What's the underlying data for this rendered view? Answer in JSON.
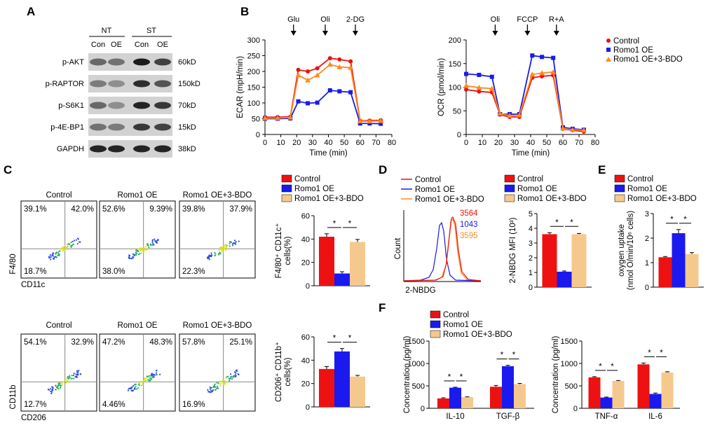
{
  "colors": {
    "red": "#ee1111",
    "blue": "#1a1aee",
    "orange": "#ff8a1a",
    "tan": "#f5c98d",
    "dark": "#000000"
  },
  "panels": {
    "A": "A",
    "B": "B",
    "C": "C",
    "D": "D",
    "E": "E",
    "F": "F"
  },
  "western_blot": {
    "groups": [
      "NT",
      "ST"
    ],
    "lanes": [
      "Con",
      "OE",
      "Con",
      "OE"
    ],
    "rows": [
      {
        "label": "p-AKT",
        "kd": "60kD"
      },
      {
        "label": "p-RAPTOR",
        "kd": "150kD"
      },
      {
        "label": "p-S6K1",
        "kd": "70kD"
      },
      {
        "label": "p-4E-BP1",
        "kd": "15kD"
      },
      {
        "label": "GAPDH",
        "kd": "38kD"
      }
    ]
  },
  "legend3_line": [
    "Control",
    "Romo1 OE",
    "Romo1 OE+3-BDO"
  ],
  "legend3_bar": [
    "Control",
    "Romo1 OE",
    "Romo1 OE+3-BDO"
  ],
  "star": "*",
  "flow": {
    "columns": [
      "Control",
      "Romo1 OE",
      "Romo1 OE+3-BDO"
    ],
    "top": {
      "ylabel": "F4/80",
      "xlabel": "CD11c",
      "quadrants": [
        {
          "ul": "39.1%",
          "ur": "42.0%",
          "ll": "18.7%"
        },
        {
          "ul": "52.6%",
          "ur": "9.39%",
          "ll": "38.0%"
        },
        {
          "ul": "39.8%",
          "ur": "37.9%",
          "ll": "22.3%"
        }
      ]
    },
    "bottom": {
      "ylabel": "CD11b",
      "xlabel": "CD206",
      "quadrants": [
        {
          "ul": "54.1%",
          "ur": "32.9%",
          "ll": "12.7%"
        },
        {
          "ul": "47.2%",
          "ur": "48.3%",
          "ll": "4.46%"
        },
        {
          "ul": "57.8%",
          "ur": "25.1%",
          "ll": "16.9%"
        }
      ]
    }
  },
  "histogram": {
    "legend": [
      "Control",
      "Romo1 OE",
      "Romo1 OE+3-BDO"
    ],
    "mfi": [
      "3564",
      "1043",
      "3595"
    ],
    "ylabel": "Count",
    "xlabel": "2-NBDG"
  },
  "chart_data": [
    {
      "id": "ecar",
      "type": "line",
      "xlabel": "Time (min)",
      "ylabel": "ECAR (mpH/min)",
      "xlim": [
        0,
        80
      ],
      "ylim": [
        0,
        300
      ],
      "xticks": [
        0,
        10,
        20,
        30,
        40,
        50,
        60,
        70,
        80
      ],
      "yticks": [
        0,
        50,
        100,
        150,
        200,
        250,
        300
      ],
      "injections": [
        {
          "label": "Glu",
          "x": 18
        },
        {
          "label": "Oli",
          "x": 38
        },
        {
          "label": "2-DG",
          "x": 57
        }
      ],
      "x": [
        0,
        8,
        16,
        21,
        27,
        33,
        41,
        47,
        54,
        60,
        66,
        73
      ],
      "series": [
        {
          "name": "Control",
          "color": "#ee1111",
          "values": [
            55,
            55,
            56,
            205,
            200,
            210,
            242,
            238,
            232,
            43,
            44,
            45
          ]
        },
        {
          "name": "Romo1 OE",
          "color": "#1a1aee",
          "values": [
            50,
            50,
            51,
            105,
            99,
            101,
            140,
            137,
            134,
            35,
            35,
            34
          ]
        },
        {
          "name": "Romo1 OE+3-BDO",
          "color": "#ff8a1a",
          "values": [
            52,
            52,
            54,
            188,
            172,
            188,
            222,
            214,
            212,
            42,
            42,
            43
          ]
        }
      ]
    },
    {
      "id": "ocr",
      "type": "line",
      "xlabel": "Time (min)",
      "ylabel": "OCR (pmol/min)",
      "xlim": [
        0,
        80
      ],
      "ylim": [
        0,
        200
      ],
      "xticks": [
        0,
        10,
        20,
        30,
        40,
        50,
        60,
        70,
        80
      ],
      "yticks": [
        0,
        50,
        100,
        150,
        200
      ],
      "injections": [
        {
          "label": "Oli",
          "x": 18
        },
        {
          "label": "FCCP",
          "x": 38
        },
        {
          "label": "R+A",
          "x": 56
        }
      ],
      "x": [
        0,
        8,
        16,
        21,
        27,
        33,
        41,
        47,
        54,
        60,
        66,
        73
      ],
      "series": [
        {
          "name": "Control",
          "color": "#ee1111",
          "values": [
            95,
            91,
            89,
            42,
            37,
            37,
            120,
            123,
            125,
            12,
            9,
            6
          ]
        },
        {
          "name": "Romo1 OE",
          "color": "#1a1aee",
          "values": [
            128,
            126,
            122,
            43,
            43,
            43,
            167,
            164,
            162,
            15,
            12,
            10
          ]
        },
        {
          "name": "Romo1 OE+3-BDO",
          "color": "#ff8a1a",
          "values": [
            103,
            99,
            97,
            44,
            40,
            41,
            127,
            130,
            132,
            13,
            10,
            9
          ]
        }
      ]
    },
    {
      "id": "f480",
      "type": "bar",
      "ylabel": "F4/80⁺ CD11c⁺ cells(%)",
      "ylim": [
        0,
        60
      ],
      "yticks": [
        0,
        20,
        40,
        60
      ],
      "categories": [
        ""
      ],
      "series": [
        {
          "name": "Control",
          "values": [
            42
          ],
          "err": [
            2.5
          ]
        },
        {
          "name": "Romo1 OE",
          "values": [
            10.5
          ],
          "err": [
            1.5
          ]
        },
        {
          "name": "Romo1 OE+3-BDO",
          "values": [
            37.5
          ],
          "err": [
            2.2
          ]
        }
      ],
      "sig": [
        [
          0,
          1
        ],
        [
          1,
          2
        ]
      ]
    },
    {
      "id": "cd206",
      "type": "bar",
      "ylabel": "CD206⁺ CD11b⁺ cells(%)",
      "ylim": [
        0,
        60
      ],
      "yticks": [
        0,
        20,
        40,
        60
      ],
      "categories": [
        ""
      ],
      "series": [
        {
          "name": "Control",
          "values": [
            32.5
          ],
          "err": [
            2
          ]
        },
        {
          "name": "Romo1 OE",
          "values": [
            47.5
          ],
          "err": [
            2.5
          ]
        },
        {
          "name": "Romo1 OE+3-BDO",
          "values": [
            26
          ],
          "err": [
            1
          ]
        }
      ],
      "sig": [
        [
          0,
          1
        ],
        [
          1,
          2
        ]
      ]
    },
    {
      "id": "nbdg",
      "type": "bar",
      "ylabel": "2-NBDG MFI (10³)",
      "ylim": [
        0,
        5
      ],
      "yticks": [
        0,
        1,
        2,
        3,
        4,
        5
      ],
      "categories": [
        ""
      ],
      "series": [
        {
          "name": "Control",
          "values": [
            3.6
          ],
          "err": [
            0.1
          ]
        },
        {
          "name": "Romo1 OE",
          "values": [
            1.05
          ],
          "err": [
            0.05
          ]
        },
        {
          "name": "Romo1 OE+3-BDO",
          "values": [
            3.6
          ],
          "err": [
            0.05
          ]
        }
      ],
      "sig": [
        [
          0,
          1
        ],
        [
          1,
          2
        ]
      ]
    },
    {
      "id": "oxygen",
      "type": "bar",
      "ylabel": "oxygen uptake (nmol O/min/10⁶ cells)",
      "ylim": [
        0,
        3
      ],
      "yticks": [
        0,
        1,
        2,
        3
      ],
      "categories": [
        ""
      ],
      "series": [
        {
          "name": "Control",
          "values": [
            1.22
          ],
          "err": [
            0.03
          ]
        },
        {
          "name": "Romo1 OE",
          "values": [
            2.2
          ],
          "err": [
            0.15
          ]
        },
        {
          "name": "Romo1 OE+3-BDO",
          "values": [
            1.35
          ],
          "err": [
            0.06
          ]
        }
      ],
      "sig": [
        [
          0,
          1
        ],
        [
          1,
          2
        ]
      ]
    },
    {
      "id": "f_left",
      "type": "bar",
      "ylabel": "Concentration (pg/ml)",
      "ylim": [
        0,
        1500
      ],
      "yticks": [
        0,
        500,
        1000,
        1500
      ],
      "categories": [
        "IL-10",
        "TGF-β"
      ],
      "series": [
        {
          "name": "Control",
          "values": [
            220,
            480
          ],
          "err": [
            15,
            30
          ]
        },
        {
          "name": "Romo1 OE",
          "values": [
            460,
            940
          ],
          "err": [
            10,
            20
          ]
        },
        {
          "name": "Romo1 OE+3-BDO",
          "values": [
            250,
            540
          ],
          "err": [
            5,
            15
          ]
        }
      ],
      "sig": [
        [
          0,
          1
        ],
        [
          1,
          2
        ]
      ]
    },
    {
      "id": "f_right",
      "type": "bar",
      "ylabel": "Concentration (pg/ml)",
      "ylim": [
        0,
        1500
      ],
      "yticks": [
        0,
        500,
        1000,
        1500
      ],
      "categories": [
        "TNF-α",
        "IL-6"
      ],
      "series": [
        {
          "name": "Control",
          "values": [
            690,
            980
          ],
          "err": [
            15,
            30
          ]
        },
        {
          "name": "Romo1 OE",
          "values": [
            240,
            320
          ],
          "err": [
            10,
            20
          ]
        },
        {
          "name": "Romo1 OE+3-BDO",
          "values": [
            610,
            800
          ],
          "err": [
            10,
            15
          ]
        }
      ],
      "sig": [
        [
          0,
          1
        ],
        [
          1,
          2
        ]
      ]
    }
  ]
}
